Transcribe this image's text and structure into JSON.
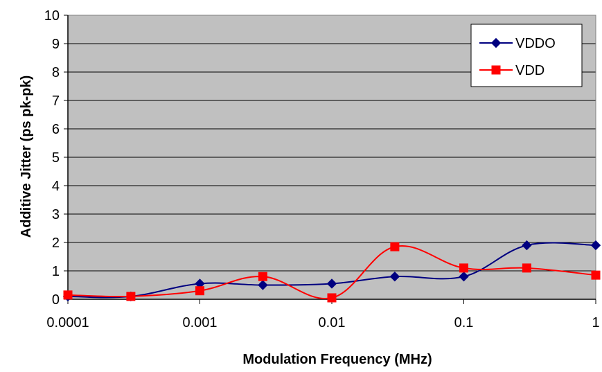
{
  "chart_data": {
    "type": "line",
    "xscale": "log",
    "xlabel": "Modulation Frequency (MHz)",
    "ylabel": "Additive Jitter (ps pk-pk)",
    "xlim": [
      0.0001,
      1
    ],
    "ylim": [
      0,
      10
    ],
    "x_tick_labels": [
      "0.0001",
      "0.001",
      "0.01",
      "0.1",
      "1"
    ],
    "y_tick_labels": [
      "0",
      "1",
      "2",
      "3",
      "4",
      "5",
      "6",
      "7",
      "8",
      "9",
      "10"
    ],
    "grid": true,
    "legend_position": "top-right",
    "plot_background": "#c0c0c0",
    "series": [
      {
        "name": "VDDO",
        "color": "#000080",
        "marker": "diamond",
        "x": [
          0.0001,
          0.0003,
          0.001,
          0.003,
          0.01,
          0.03,
          0.1,
          0.3,
          1
        ],
        "y": [
          0.1,
          0.1,
          0.55,
          0.5,
          0.55,
          0.8,
          0.8,
          1.9,
          1.9
        ]
      },
      {
        "name": "VDD",
        "color": "#ff0000",
        "marker": "square",
        "x": [
          0.0001,
          0.0003,
          0.001,
          0.003,
          0.01,
          0.03,
          0.1,
          0.3,
          1
        ],
        "y": [
          0.15,
          0.1,
          0.3,
          0.8,
          0.05,
          1.85,
          1.1,
          1.1,
          0.85
        ]
      }
    ]
  }
}
